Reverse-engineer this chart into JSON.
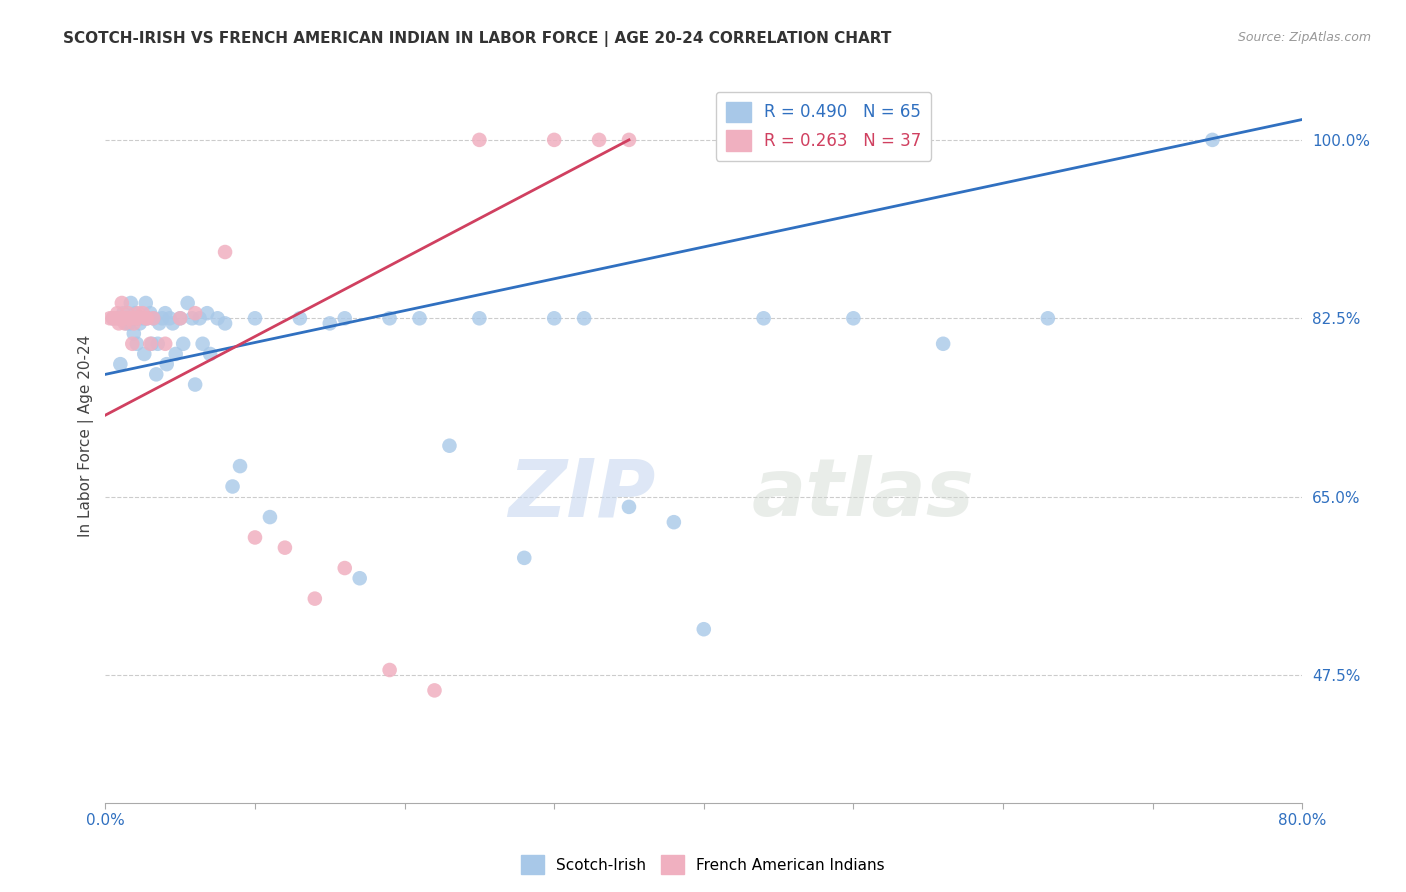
{
  "title": "SCOTCH-IRISH VS FRENCH AMERICAN INDIAN IN LABOR FORCE | AGE 20-24 CORRELATION CHART",
  "source": "Source: ZipAtlas.com",
  "ylabel": "In Labor Force | Age 20-24",
  "ytick_labels": [
    "100.0%",
    "82.5%",
    "65.0%",
    "47.5%"
  ],
  "ytick_values": [
    1.0,
    0.825,
    0.65,
    0.475
  ],
  "watermark_zip": "ZIP",
  "watermark_atlas": "atlas",
  "legend_blue_r": "R = 0.490",
  "legend_blue_n": "N = 65",
  "legend_pink_r": "R = 0.263",
  "legend_pink_n": "N = 37",
  "blue_color": "#a8c8e8",
  "pink_color": "#f0b0c0",
  "blue_line_color": "#3070c0",
  "pink_line_color": "#d04060",
  "scotch_irish_x": [
    0.005,
    0.008,
    0.01,
    0.012,
    0.013,
    0.014,
    0.015,
    0.016,
    0.017,
    0.018,
    0.019,
    0.02,
    0.021,
    0.022,
    0.023,
    0.025,
    0.026,
    0.027,
    0.028,
    0.03,
    0.031,
    0.032,
    0.034,
    0.035,
    0.036,
    0.038,
    0.04,
    0.041,
    0.043,
    0.045,
    0.047,
    0.05,
    0.052,
    0.055,
    0.058,
    0.06,
    0.063,
    0.065,
    0.068,
    0.07,
    0.075,
    0.08,
    0.085,
    0.09,
    0.1,
    0.11,
    0.13,
    0.15,
    0.16,
    0.17,
    0.19,
    0.21,
    0.23,
    0.25,
    0.28,
    0.3,
    0.32,
    0.35,
    0.38,
    0.4,
    0.44,
    0.5,
    0.56,
    0.63,
    0.74
  ],
  "scotch_irish_y": [
    0.825,
    0.825,
    0.78,
    0.83,
    0.825,
    0.82,
    0.825,
    0.82,
    0.84,
    0.825,
    0.81,
    0.83,
    0.8,
    0.825,
    0.82,
    0.825,
    0.79,
    0.84,
    0.825,
    0.83,
    0.8,
    0.825,
    0.77,
    0.8,
    0.82,
    0.825,
    0.83,
    0.78,
    0.825,
    0.82,
    0.79,
    0.825,
    0.8,
    0.84,
    0.825,
    0.76,
    0.825,
    0.8,
    0.83,
    0.79,
    0.825,
    0.82,
    0.66,
    0.68,
    0.825,
    0.63,
    0.825,
    0.82,
    0.825,
    0.57,
    0.825,
    0.825,
    0.7,
    0.825,
    0.59,
    0.825,
    0.825,
    0.64,
    0.625,
    0.52,
    0.825,
    0.825,
    0.8,
    0.825,
    1.0
  ],
  "french_ai_x": [
    0.003,
    0.005,
    0.007,
    0.008,
    0.009,
    0.01,
    0.011,
    0.012,
    0.013,
    0.014,
    0.015,
    0.016,
    0.017,
    0.018,
    0.019,
    0.02,
    0.021,
    0.022,
    0.025,
    0.027,
    0.028,
    0.03,
    0.032,
    0.04,
    0.05,
    0.06,
    0.08,
    0.1,
    0.12,
    0.14,
    0.16,
    0.19,
    0.22,
    0.25,
    0.3,
    0.33,
    0.35
  ],
  "french_ai_y": [
    0.825,
    0.825,
    0.825,
    0.83,
    0.82,
    0.825,
    0.84,
    0.825,
    0.82,
    0.825,
    0.83,
    0.825,
    0.825,
    0.8,
    0.82,
    0.825,
    0.825,
    0.83,
    0.83,
    0.825,
    0.825,
    0.8,
    0.825,
    0.8,
    0.825,
    0.83,
    0.89,
    0.61,
    0.6,
    0.55,
    0.58,
    0.48,
    0.46,
    1.0,
    1.0,
    1.0,
    1.0
  ],
  "xmin": 0.0,
  "xmax": 0.8,
  "ymin": 0.35,
  "ymax": 1.07,
  "blue_line_x0": 0.0,
  "blue_line_y0": 0.77,
  "blue_line_x1": 0.8,
  "blue_line_y1": 1.02,
  "pink_line_x0": 0.0,
  "pink_line_y0": 0.73,
  "pink_line_x1": 0.35,
  "pink_line_y1": 1.0
}
